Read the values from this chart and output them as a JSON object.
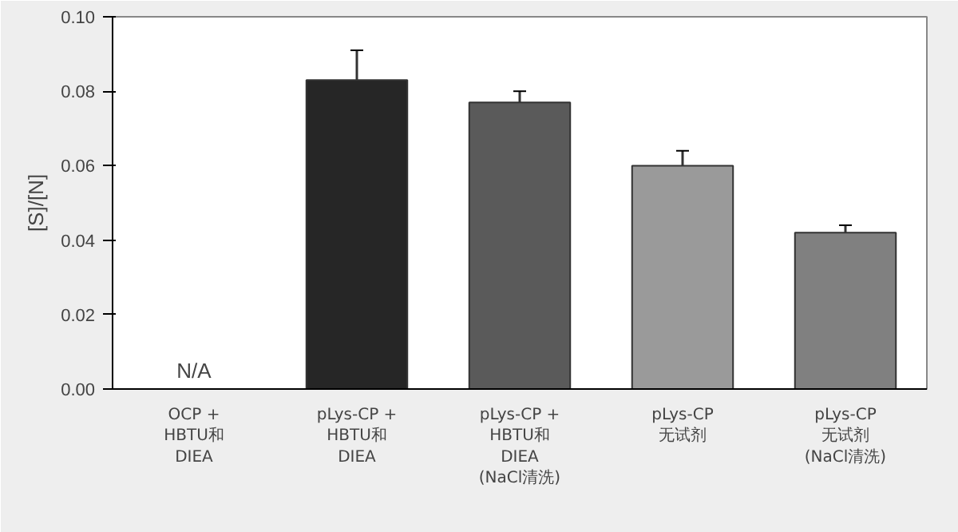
{
  "chart_data": {
    "type": "bar",
    "ylabel": "[S]/[N]",
    "categories": [
      "OCP +\nHBTU和\nDIEA",
      "pLys-CP +\nHBTU和\nDIEA",
      "pLys-CP +\nHBTU和\nDIEA\n(NaCl清洗)",
      "pLys-CP\n无试剂",
      "pLys-CP\n无试剂\n(NaCl清洗)"
    ],
    "values": [
      null,
      0.083,
      0.077,
      0.06,
      0.042
    ],
    "errors": [
      null,
      0.008,
      0.003,
      0.004,
      0.002
    ],
    "colors": [
      "#ffffff",
      "#262626",
      "#5a5a5a",
      "#9a9a9a",
      "#808080"
    ],
    "ylim": [
      0,
      0.1
    ],
    "yticks": [
      {
        "value": 0,
        "label": "0.00"
      },
      {
        "value": 0.02,
        "label": "0.02"
      },
      {
        "value": 0.04,
        "label": "0.04"
      },
      {
        "value": 0.06,
        "label": "0.06"
      },
      {
        "value": 0.08,
        "label": "0.08"
      },
      {
        "value": 0.1,
        "label": "0.10"
      }
    ],
    "annotations": [
      "N/A"
    ],
    "grid": false
  }
}
